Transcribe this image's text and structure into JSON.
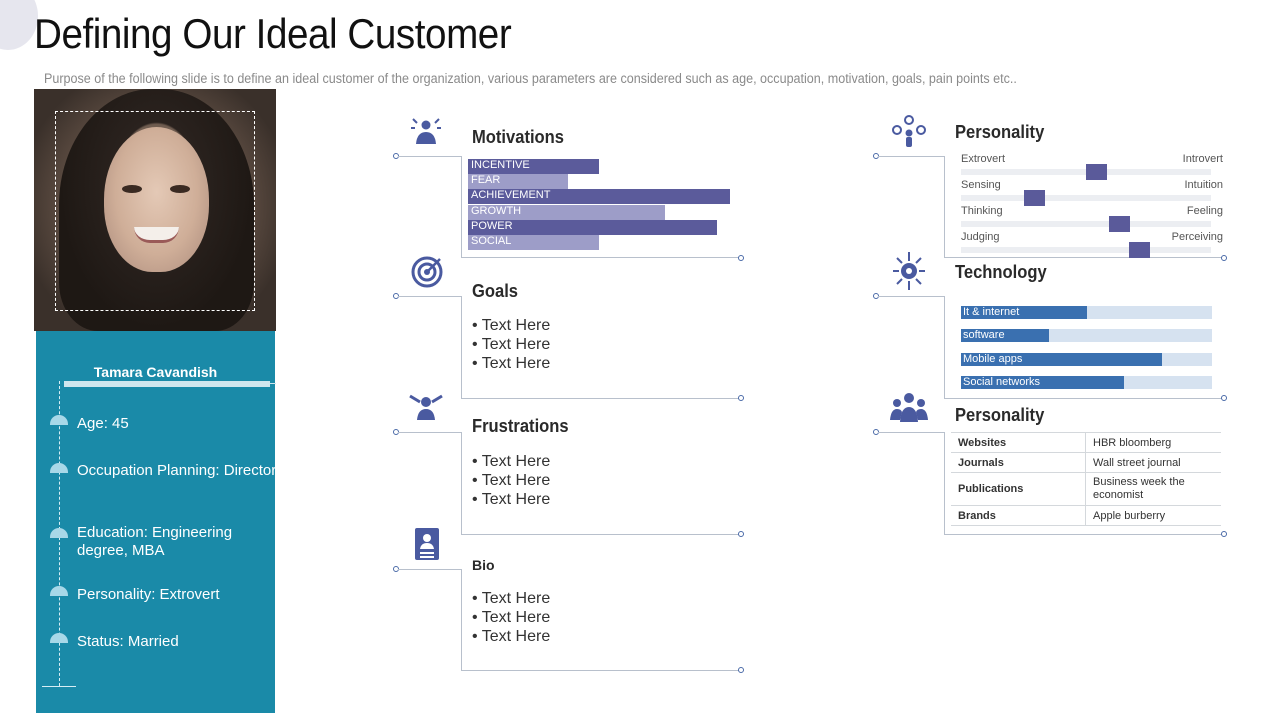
{
  "slide": {
    "title": "Defining Our Ideal Customer",
    "subtitle": "Purpose of the following slide is to define an ideal customer of the organization, various parameters are considered such as age, occupation, motivation, goals, pain points etc.."
  },
  "profile": {
    "name": "Tamara Cavandish",
    "details": [
      "Age: 45",
      "Occupation Planning: Director",
      "Education: Engineering degree, MBA",
      "Personality: Extrovert",
      "Status: Married"
    ]
  },
  "motivations": {
    "title": "Motivations",
    "bars": [
      {
        "label": "INCENTIVE",
        "value": 0.5,
        "color": "#5b5b9b"
      },
      {
        "label": "FEAR",
        "value": 0.38,
        "color": "#9d9dc8"
      },
      {
        "label": "ACHIEVEMENT",
        "value": 1.0,
        "color": "#5b5b9b"
      },
      {
        "label": "GROWTH",
        "value": 0.75,
        "color": "#9d9dc8"
      },
      {
        "label": "POWER",
        "value": 0.95,
        "color": "#5b5b9b"
      },
      {
        "label": "SOCIAL",
        "value": 0.5,
        "color": "#9d9dc8"
      }
    ]
  },
  "goals": {
    "title": "Goals",
    "items": [
      "• Text  Here",
      "• Text  Here",
      "• Text  Here"
    ]
  },
  "frustrations": {
    "title": "Frustrations",
    "items": [
      "• Text  Here",
      "• Text  Here",
      "• Text  Here"
    ]
  },
  "bio": {
    "title": "Bio",
    "items": [
      "• Text  Here",
      "• Text  Here",
      "• Text  Here"
    ]
  },
  "personality": {
    "title": "Personality",
    "traits": [
      {
        "left": "Extrovert",
        "right": "Introvert",
        "value": 0.54
      },
      {
        "left": "Sensing",
        "right": "Intuition",
        "value": 0.29
      },
      {
        "left": "Thinking",
        "right": "Feeling",
        "value": 0.63
      },
      {
        "left": "Judging",
        "right": "Perceiving",
        "value": 0.71
      }
    ]
  },
  "technology": {
    "title": "Technology",
    "items": [
      {
        "label": "It & internet",
        "value": 0.5
      },
      {
        "label": "software",
        "value": 0.35
      },
      {
        "label": "Mobile apps",
        "value": 0.8
      },
      {
        "label": "Social networks",
        "value": 0.65
      }
    ]
  },
  "media": {
    "title": "Personality",
    "rows": [
      {
        "key": "Websites",
        "value": "HBR bloomberg"
      },
      {
        "key": "Journals",
        "value": "Wall street journal"
      },
      {
        "key": "Publications",
        "value": "Business week the economist"
      },
      {
        "key": "Brands",
        "value": "Apple burberry"
      }
    ]
  },
  "icons": {
    "motivations": "person-burst-icon",
    "goals": "target-icon",
    "frustrations": "stressed-person-icon",
    "bio": "id-badge-icon",
    "personality": "person-gears-icon",
    "technology": "circuit-gear-icon",
    "media": "group-icon"
  }
}
